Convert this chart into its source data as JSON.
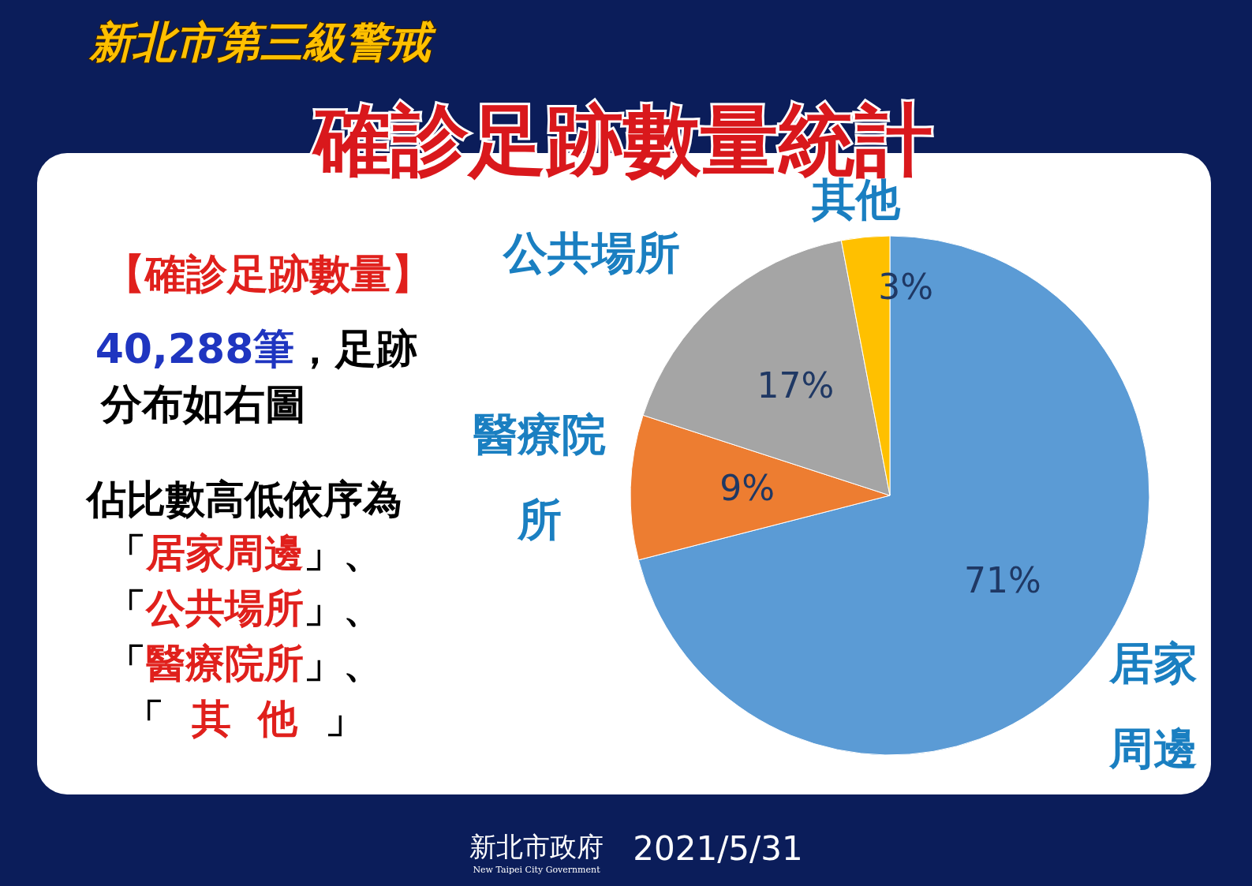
{
  "chart_data": {
    "type": "pie",
    "title": "確診足跡數量統計",
    "subtitle": "新北市第三級警戒",
    "categories": [
      "居家周邊",
      "醫療院所",
      "公共場所",
      "其他"
    ],
    "values": [
      71,
      9,
      17,
      3
    ],
    "colors": [
      "#5b9bd5",
      "#ed7d31",
      "#a5a5a5",
      "#ffc000"
    ],
    "value_labels": [
      "71%",
      "9%",
      "17%",
      "3%"
    ],
    "annotations": [
      "【確診足跡數量】",
      "40,288筆，足跡",
      "分布如右圖",
      "佔比數高低依序為",
      "「居家周邊」、",
      "「公共場所」、",
      "「醫療院所」、",
      "「  其  他  」",
      "新北市政府",
      "New Taipei City Government",
      "2021/5/31"
    ]
  }
}
